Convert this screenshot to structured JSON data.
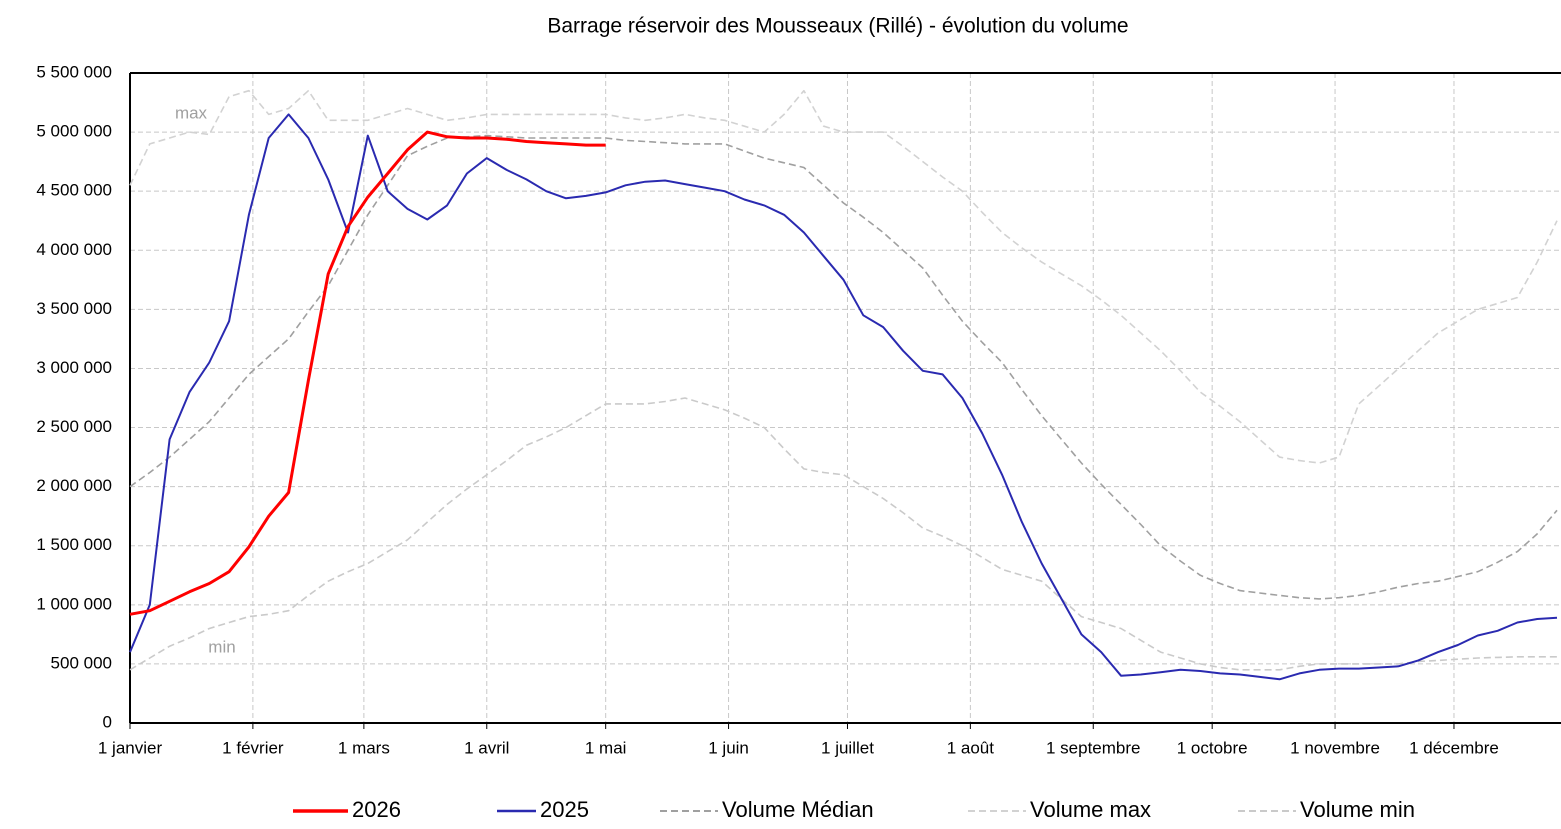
{
  "chart_data": {
    "type": "line",
    "title": "Barrage réservoir des Mousseaux (Rillé) - évolution du volume",
    "annotations": [
      "max",
      "min"
    ],
    "x": [
      0,
      5,
      10,
      15,
      20,
      25,
      30,
      35,
      40,
      45,
      50,
      55,
      60,
      65,
      70,
      75,
      80,
      85,
      90,
      95,
      100,
      105,
      110,
      115,
      120,
      125,
      130,
      135,
      140,
      145,
      150,
      155,
      160,
      165,
      170,
      175,
      180,
      185,
      190,
      195,
      200,
      205,
      210,
      215,
      220,
      225,
      230,
      235,
      240,
      245,
      250,
      255,
      260,
      265,
      270,
      275,
      280,
      285,
      290,
      295,
      300,
      305,
      310,
      315,
      320,
      325,
      330,
      335,
      340,
      345,
      350,
      355,
      360
    ],
    "xlim": [
      0,
      361
    ],
    "xticks": [
      {
        "value": 0,
        "label": "1 janvier"
      },
      {
        "value": 31,
        "label": "1 février"
      },
      {
        "value": 59,
        "label": "1 mars"
      },
      {
        "value": 90,
        "label": "1 avril"
      },
      {
        "value": 120,
        "label": "1 mai"
      },
      {
        "value": 151,
        "label": "1 juin"
      },
      {
        "value": 181,
        "label": "1 juillet"
      },
      {
        "value": 212,
        "label": "1 août"
      },
      {
        "value": 243,
        "label": "1 septembre"
      },
      {
        "value": 273,
        "label": "1 octobre"
      },
      {
        "value": 304,
        "label": "1 novembre"
      },
      {
        "value": 334,
        "label": "1 décembre"
      }
    ],
    "ylim": [
      0,
      5500000
    ],
    "yticks": [
      0,
      {
        "value": 500000,
        "label": "500 000"
      },
      {
        "value": 1000000,
        "label": "1 000 000"
      },
      {
        "value": 1500000,
        "label": "1 500 000"
      },
      {
        "value": 2000000,
        "label": "2 000 000"
      },
      {
        "value": 2500000,
        "label": "2 500 000"
      },
      {
        "value": 3000000,
        "label": "3 000 000"
      },
      {
        "value": 3500000,
        "label": "3 500 000"
      },
      {
        "value": 4000000,
        "label": "4 000 000"
      },
      {
        "value": 4500000,
        "label": "4 500 000"
      },
      {
        "value": 5000000,
        "label": "5 000 000"
      },
      {
        "value": 5500000,
        "label": "5 500 000"
      }
    ],
    "grid": true,
    "series": [
      {
        "name": "2026",
        "color": "#ff0000",
        "width": 3,
        "line_style": "solid",
        "values": [
          920000,
          950000,
          1030000,
          1110000,
          1180000,
          1280000,
          1490000,
          1750000,
          1950000,
          2900000,
          3800000,
          4200000,
          4450000,
          4650000,
          4850000,
          5000000,
          4960000,
          4950000,
          4950000,
          4940000,
          4920000,
          4910000,
          4900000,
          4890000,
          4890000,
          null,
          null,
          null,
          null,
          null,
          null,
          null,
          null,
          null,
          null,
          null,
          null,
          null,
          null,
          null,
          null,
          null,
          null,
          null,
          null,
          null,
          null,
          null,
          null,
          null,
          null,
          null,
          null,
          null,
          null,
          null,
          null,
          null,
          null,
          null,
          null,
          null,
          null,
          null,
          null,
          null,
          null,
          null,
          null,
          null,
          null,
          null,
          null
        ]
      },
      {
        "name": "2025",
        "color": "#2a2ab0",
        "width": 2,
        "line_style": "solid",
        "values": [
          600000,
          1000000,
          2400000,
          2800000,
          3050000,
          3400000,
          4300000,
          4950000,
          5150000,
          4950000,
          4600000,
          4150000,
          4970000,
          4500000,
          4350000,
          4260000,
          4380000,
          4650000,
          4780000,
          4680000,
          4600000,
          4500000,
          4440000,
          4460000,
          4490000,
          4550000,
          4580000,
          4590000,
          4560000,
          4530000,
          4500000,
          4430000,
          4380000,
          4300000,
          4150000,
          3950000,
          3750000,
          3450000,
          3350000,
          3150000,
          2980000,
          2950000,
          2750000,
          2450000,
          2100000,
          1700000,
          1350000,
          1050000,
          750000,
          600000,
          400000,
          410000,
          430000,
          450000,
          440000,
          420000,
          410000,
          390000,
          370000,
          420000,
          450000,
          460000,
          460000,
          470000,
          480000,
          530000,
          600000,
          660000,
          740000,
          780000,
          850000,
          880000,
          890000
        ]
      },
      {
        "name": "Volume Médian",
        "color": "#a0a0a0",
        "width": 1.6,
        "line_style": "dashed",
        "values": [
          2000000,
          2120000,
          2250000,
          2400000,
          2550000,
          2750000,
          2950000,
          3100000,
          3250000,
          3480000,
          3700000,
          4000000,
          4300000,
          4550000,
          4800000,
          4880000,
          4950000,
          4960000,
          4970000,
          4960000,
          4950000,
          4950000,
          4950000,
          4950000,
          4950000,
          4930000,
          4920000,
          4910000,
          4900000,
          4900000,
          4900000,
          4840000,
          4780000,
          4740000,
          4700000,
          4550000,
          4400000,
          4280000,
          4150000,
          4000000,
          3850000,
          3620000,
          3400000,
          3220000,
          3050000,
          2820000,
          2600000,
          2400000,
          2200000,
          2020000,
          1850000,
          1680000,
          1500000,
          1370000,
          1250000,
          1180000,
          1120000,
          1100000,
          1080000,
          1060000,
          1050000,
          1060000,
          1080000,
          1110000,
          1150000,
          1180000,
          1200000,
          1240000,
          1280000,
          1360000,
          1450000,
          1600000,
          1800000
        ]
      },
      {
        "name": "Volume max",
        "color": "#d2d2d2",
        "width": 1.6,
        "line_style": "dashed",
        "values": [
          4550000,
          4900000,
          4950000,
          5000000,
          4980000,
          5300000,
          5350000,
          5150000,
          5200000,
          5350000,
          5100000,
          5100000,
          5100000,
          5150000,
          5200000,
          5150000,
          5100000,
          5120000,
          5150000,
          5150000,
          5150000,
          5150000,
          5150000,
          5150000,
          5150000,
          5120000,
          5100000,
          5120000,
          5150000,
          5120000,
          5100000,
          5050000,
          5000000,
          5150000,
          5350000,
          5050000,
          5000000,
          5000000,
          5000000,
          4880000,
          4750000,
          4620000,
          4500000,
          4320000,
          4150000,
          4020000,
          3900000,
          3800000,
          3700000,
          3580000,
          3450000,
          3300000,
          3150000,
          2980000,
          2800000,
          2680000,
          2550000,
          2400000,
          2250000,
          2220000,
          2200000,
          2250000,
          2700000,
          2850000,
          3000000,
          3150000,
          3300000,
          3400000,
          3500000,
          3550000,
          3600000,
          3900000,
          4250000
        ]
      },
      {
        "name": "Volume min",
        "color": "#cacaca",
        "width": 1.6,
        "line_style": "dashed",
        "values": [
          450000,
          550000,
          650000,
          720000,
          800000,
          850000,
          900000,
          920000,
          950000,
          1080000,
          1200000,
          1280000,
          1350000,
          1450000,
          1550000,
          1700000,
          1850000,
          1980000,
          2100000,
          2220000,
          2350000,
          2420000,
          2500000,
          2600000,
          2700000,
          2700000,
          2700000,
          2720000,
          2750000,
          2700000,
          2650000,
          2580000,
          2500000,
          2320000,
          2150000,
          2120000,
          2100000,
          2000000,
          1900000,
          1780000,
          1650000,
          1580000,
          1500000,
          1400000,
          1300000,
          1250000,
          1200000,
          1050000,
          900000,
          850000,
          800000,
          700000,
          600000,
          550000,
          500000,
          470000,
          450000,
          450000,
          450000,
          480000,
          500000,
          500000,
          500000,
          500000,
          500000,
          520000,
          530000,
          540000,
          550000,
          555000,
          560000,
          560000,
          560000
        ]
      }
    ]
  }
}
